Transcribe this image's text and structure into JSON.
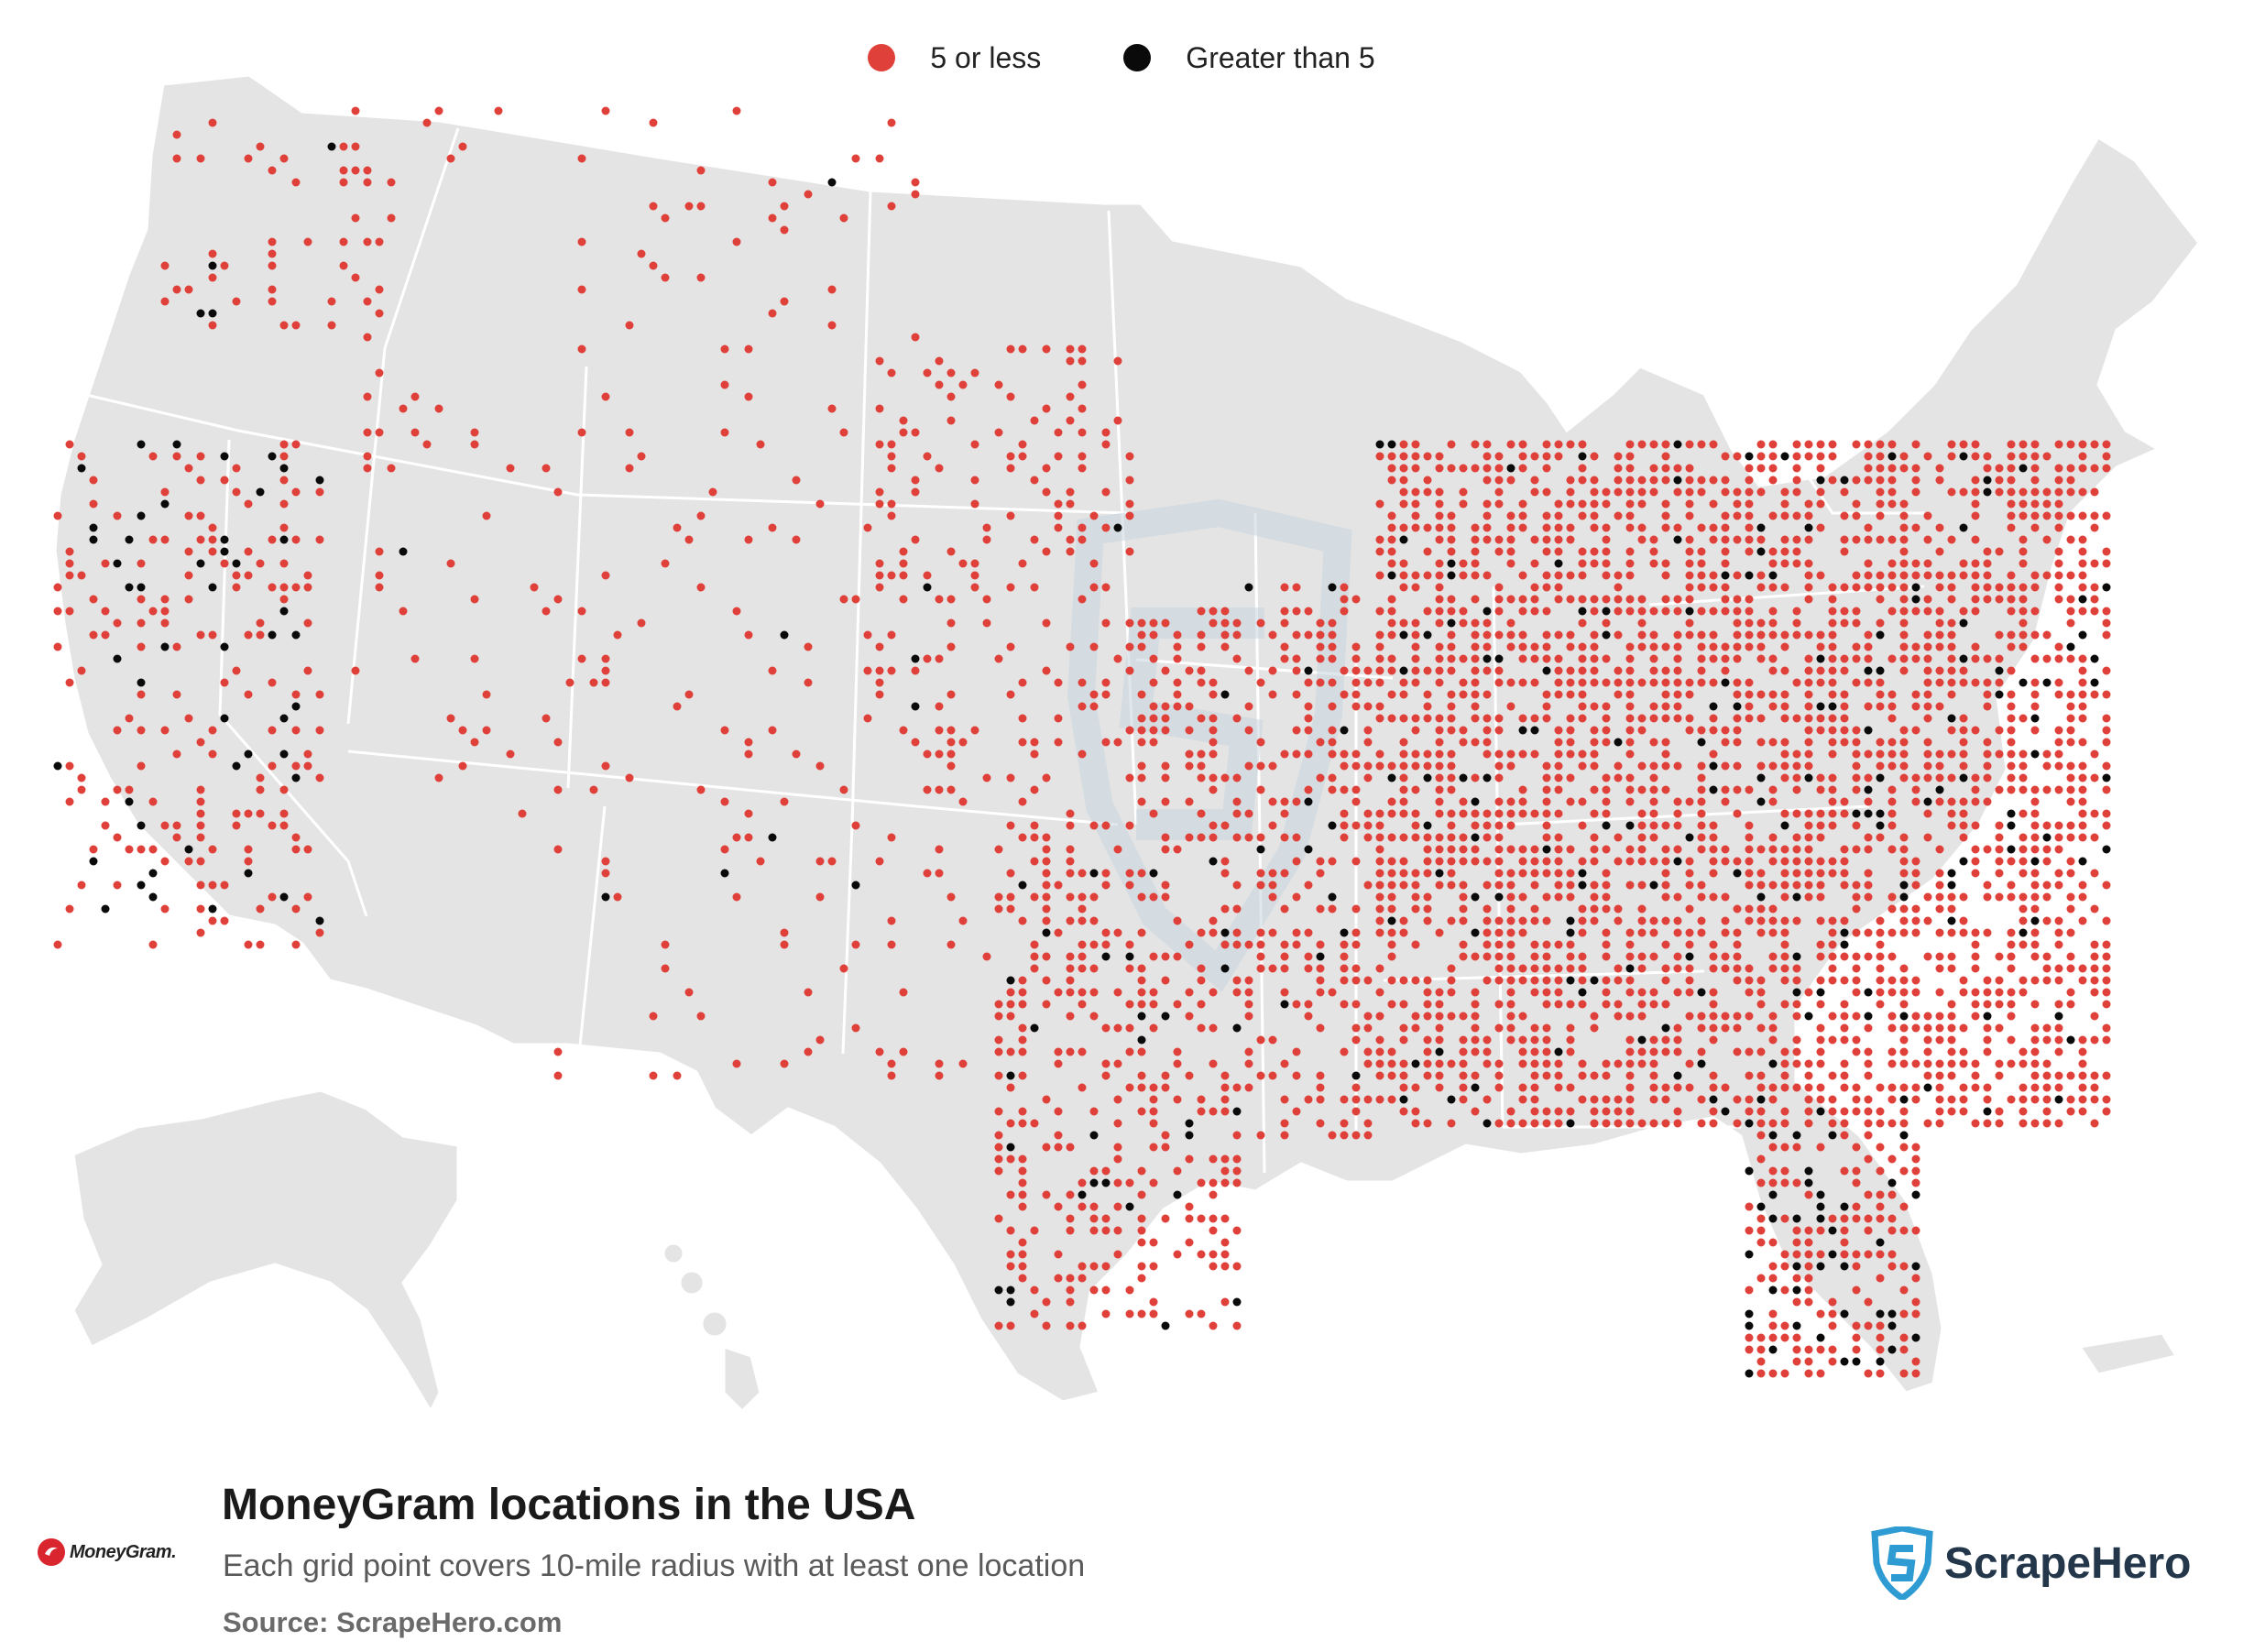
{
  "legend": {
    "items": [
      {
        "label": "5 or less",
        "color": "#e0403a"
      },
      {
        "label": "Greater than 5",
        "color": "#0a0a0a"
      }
    ]
  },
  "title": "MoneyGram locations in the USA",
  "subtitle": "Each grid point covers 10-mile radius with at least one location",
  "source": "Source: ScrapeHero.com",
  "logos": {
    "moneygram": "MoneyGram.",
    "scrapehero": "ScrapeHero"
  },
  "colors": {
    "land": "#e4e4e4",
    "border": "#ffffff",
    "low": "#e0403a",
    "high": "#0a0a0a",
    "watermark": "#cfdbe3"
  }
}
